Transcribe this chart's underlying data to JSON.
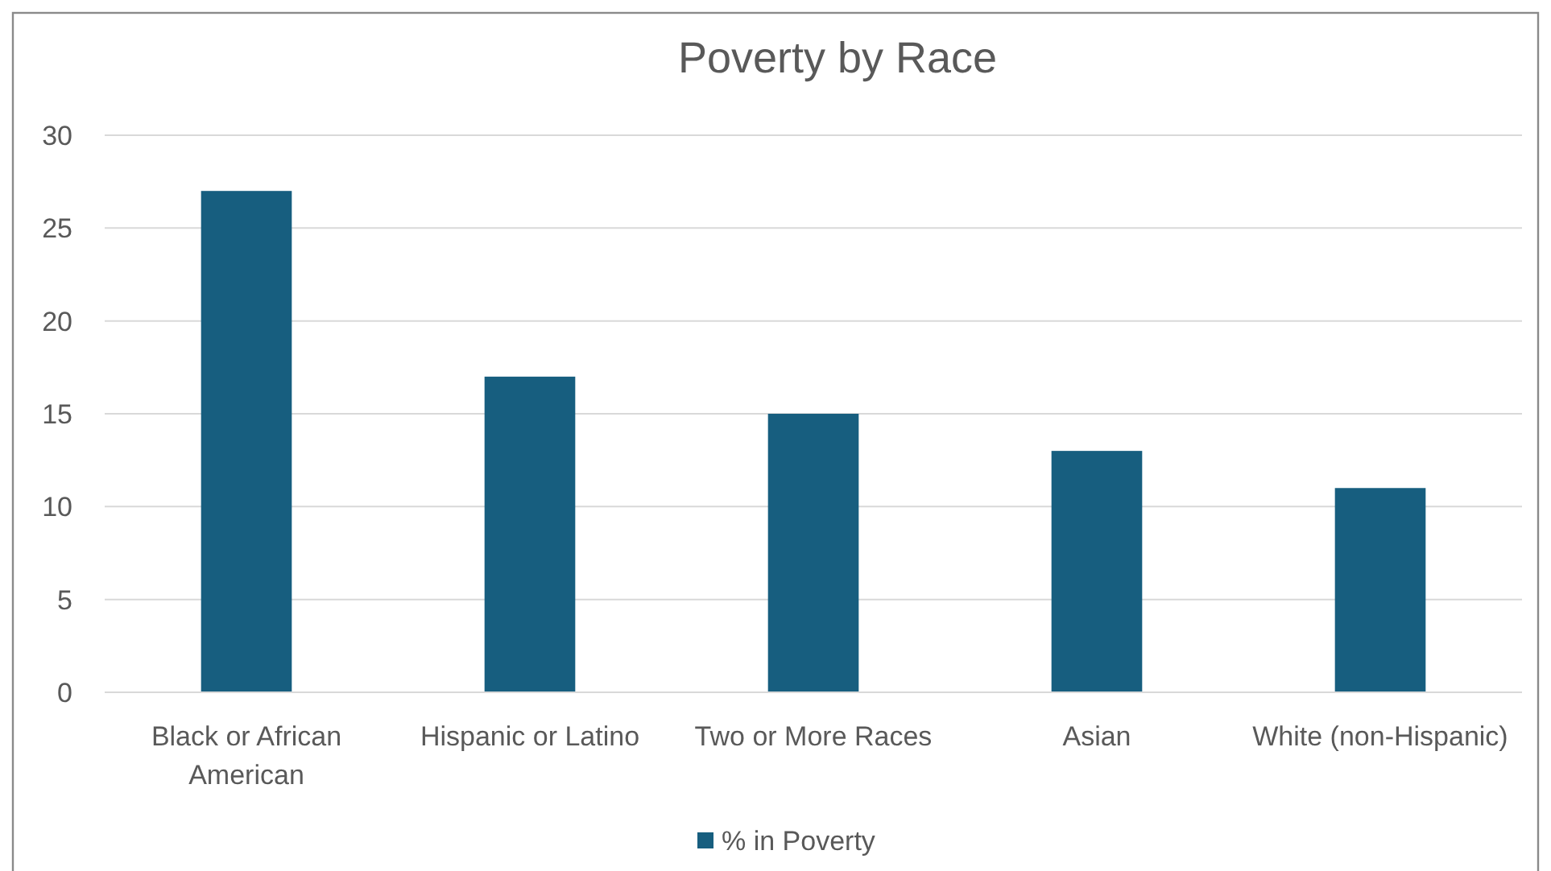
{
  "chart_data": {
    "type": "bar",
    "title": "Poverty by Race",
    "categories": [
      "Black or African American",
      "Hispanic or Latino",
      "Two or More Races",
      "Asian",
      "White (non-Hispanic)"
    ],
    "series": [
      {
        "name": "% in Poverty",
        "color": "#175e7f",
        "values": [
          27,
          17,
          15,
          13,
          11
        ]
      }
    ],
    "ylim": [
      0,
      30
    ],
    "yticks": [
      0,
      5,
      10,
      15,
      20,
      25,
      30
    ],
    "grid": "y",
    "legend": "bottom"
  }
}
